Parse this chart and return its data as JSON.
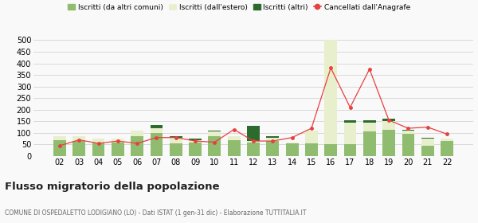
{
  "years": [
    "02",
    "03",
    "04",
    "05",
    "06",
    "07",
    "08",
    "09",
    "10",
    "11",
    "12",
    "13",
    "14",
    "15",
    "16",
    "17",
    "18",
    "19",
    "20",
    "21",
    "22"
  ],
  "iscritti_altri_comuni": [
    70,
    65,
    60,
    60,
    85,
    100,
    55,
    60,
    85,
    70,
    60,
    65,
    55,
    55,
    50,
    50,
    105,
    115,
    95,
    45,
    65
  ],
  "iscritti_estero": [
    15,
    20,
    15,
    15,
    25,
    20,
    25,
    10,
    20,
    15,
    5,
    15,
    5,
    55,
    490,
    95,
    40,
    35,
    15,
    30,
    10
  ],
  "iscritti_altri": [
    0,
    0,
    0,
    0,
    0,
    15,
    5,
    5,
    5,
    0,
    65,
    5,
    0,
    0,
    0,
    10,
    10,
    10,
    5,
    5,
    0
  ],
  "cancellati": [
    45,
    70,
    55,
    65,
    55,
    80,
    80,
    65,
    60,
    115,
    65,
    65,
    80,
    120,
    380,
    210,
    375,
    155,
    120,
    125,
    95
  ],
  "color_comuni": "#8fbc6e",
  "color_estero": "#e8efcc",
  "color_altri": "#2d6a2d",
  "color_cancellati": "#e84040",
  "title": "Flusso migratorio della popolazione",
  "subtitle": "COMUNE DI OSPEDALETTO LODIGIANO (LO) - Dati ISTAT (1 gen-31 dic) - Elaborazione TUTTITALIA.IT",
  "legend_labels": [
    "Iscritti (da altri comuni)",
    "Iscritti (dall'estero)",
    "Iscritti (altri)",
    "Cancellati dall'Anagrafe"
  ],
  "ylim": [
    0,
    500
  ],
  "yticks": [
    0,
    50,
    100,
    150,
    200,
    250,
    300,
    350,
    400,
    450,
    500
  ],
  "bg_color": "#f9f9f9",
  "grid_color": "#cccccc"
}
